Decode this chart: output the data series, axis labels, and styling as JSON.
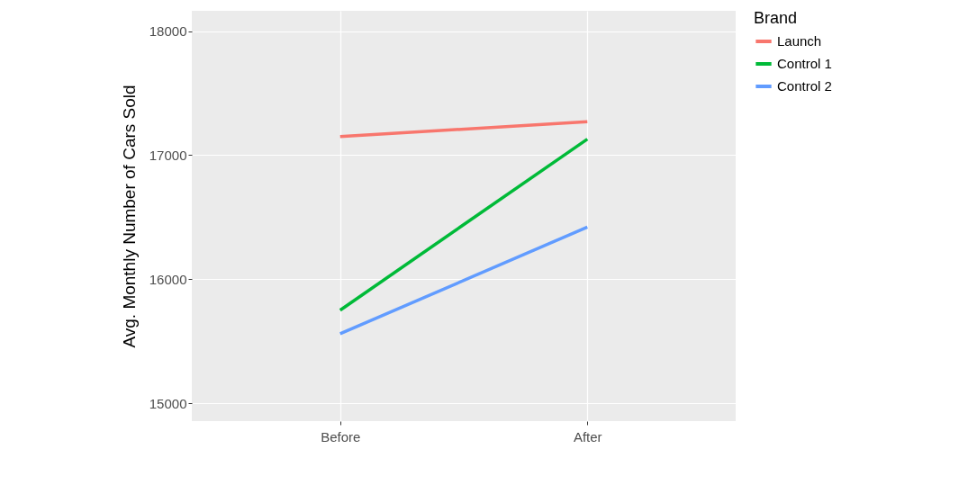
{
  "chart_data": {
    "type": "line",
    "ylabel": "Avg. Monthly Number of Cars Sold",
    "legend_title": "Brand",
    "categories": [
      "Before",
      "After"
    ],
    "series": [
      {
        "name": "Launch",
        "color": "#f8766d",
        "values": [
          17150,
          17270
        ]
      },
      {
        "name": "Control 1",
        "color": "#00ba38",
        "values": [
          15750,
          17130
        ]
      },
      {
        "name": "Control 2",
        "color": "#619cff",
        "values": [
          15560,
          16420
        ]
      }
    ],
    "ylim": [
      14855,
      18165
    ],
    "yticks": [
      15000,
      16000,
      17000,
      18000
    ],
    "grid": true,
    "legend": "right",
    "marker": "none",
    "line_style": "solid"
  }
}
